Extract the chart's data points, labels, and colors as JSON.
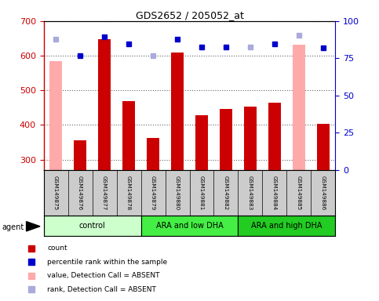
{
  "title": "GDS2652 / 205052_at",
  "samples": [
    "GSM149875",
    "GSM149876",
    "GSM149877",
    "GSM149878",
    "GSM149879",
    "GSM149880",
    "GSM149881",
    "GSM149882",
    "GSM149883",
    "GSM149884",
    "GSM149885",
    "GSM149886"
  ],
  "groups": [
    {
      "label": "control",
      "start": 0,
      "end": 4,
      "color": "#ccffcc"
    },
    {
      "label": "ARA and low DHA",
      "start": 4,
      "end": 8,
      "color": "#44ee44"
    },
    {
      "label": "ARA and high DHA",
      "start": 8,
      "end": 12,
      "color": "#22cc22"
    }
  ],
  "bar_values": [
    null,
    356,
    648,
    470,
    363,
    610,
    428,
    447,
    453,
    465,
    null,
    403
  ],
  "bar_absent": [
    585,
    null,
    null,
    null,
    null,
    null,
    null,
    null,
    null,
    null,
    632,
    null
  ],
  "rank_present": [
    null,
    600,
    655,
    635,
    null,
    648,
    625,
    626,
    null,
    633,
    null,
    622
  ],
  "rank_absent": [
    648,
    null,
    null,
    null,
    600,
    null,
    null,
    null,
    625,
    null,
    658,
    null
  ],
  "ylim_left": [
    270,
    700
  ],
  "ylim_right": [
    0,
    100
  ],
  "yticks_left": [
    300,
    400,
    500,
    600,
    700
  ],
  "yticks_right": [
    0,
    25,
    50,
    75,
    100
  ],
  "bar_color": "#cc0000",
  "bar_absent_color": "#ffaaaa",
  "rank_present_color": "#0000cc",
  "rank_absent_color": "#aaaadd",
  "grid_color": "#666666",
  "bg_color": "#ffffff",
  "left_label_color": "#cc0000",
  "right_label_color": "#0000cc",
  "legend_items": [
    {
      "color": "#cc0000",
      "label": "count"
    },
    {
      "color": "#0000cc",
      "label": "percentile rank within the sample"
    },
    {
      "color": "#ffaaaa",
      "label": "value, Detection Call = ABSENT"
    },
    {
      "color": "#aaaadd",
      "label": "rank, Detection Call = ABSENT"
    }
  ]
}
